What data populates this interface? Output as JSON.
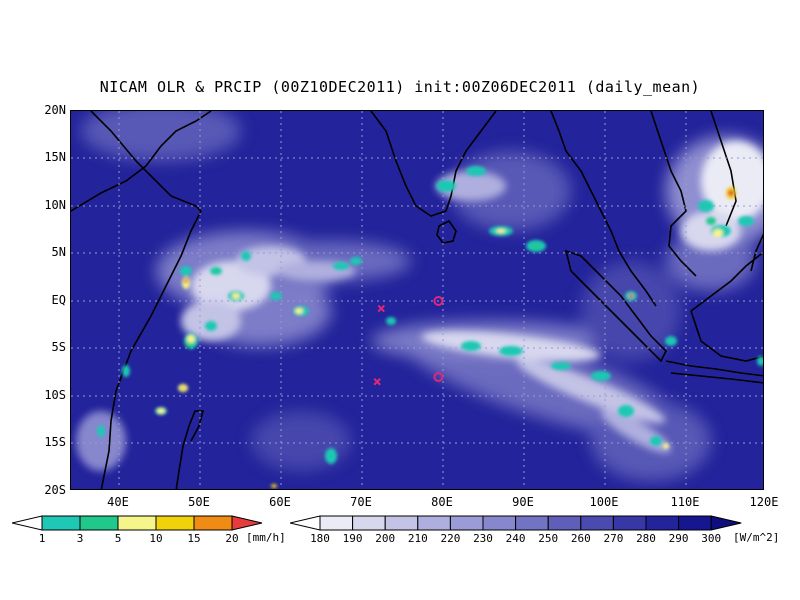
{
  "title": "NICAM OLR & PRCIP (00Z10DEC2011) init:00Z06DEC2011 (daily_mean)",
  "axes": {
    "lon_labels": [
      "40E",
      "50E",
      "60E",
      "70E",
      "80E",
      "90E",
      "100E",
      "110E",
      "120E"
    ],
    "lat_labels": [
      "20N",
      "15N",
      "10N",
      "5N",
      "EQ",
      "5S",
      "10S",
      "15S",
      "20S"
    ],
    "lon_range": [
      35,
      120
    ],
    "lat_range": [
      -20,
      20
    ]
  },
  "colorbars": {
    "precip": {
      "labels": [
        "1",
        "3",
        "5",
        "10",
        "15",
        "20"
      ],
      "unit": "[mm/h]",
      "colors": [
        "#ffffff",
        "#1ec8b4",
        "#20c88c",
        "#f5f58c",
        "#f0d20a",
        "#f08c14",
        "#e63c3c"
      ]
    },
    "olr": {
      "labels": [
        "180",
        "190",
        "200",
        "210",
        "220",
        "230",
        "240",
        "250",
        "260",
        "270",
        "280",
        "290",
        "300"
      ],
      "unit": "[W/m^2]",
      "colors": [
        "#ffffff",
        "#ebebf5",
        "#d7d7ee",
        "#c3c3e6",
        "#afafdf",
        "#9b9bd7",
        "#8787cd",
        "#7373c3",
        "#5f5fb9",
        "#4b4baf",
        "#3737a5",
        "#23239b",
        "#161691",
        "#0e0e7d"
      ]
    }
  },
  "markers": [
    {
      "type": "x",
      "lon": 73,
      "lat": -0.8,
      "color": "#e0287a"
    },
    {
      "type": "x",
      "lon": 72.5,
      "lat": -8.5,
      "color": "#e0287a"
    },
    {
      "type": "o",
      "lon": 80,
      "lat": 0,
      "color": "#e0287a"
    },
    {
      "type": "o",
      "lon": 80,
      "lat": -8,
      "color": "#e0287a"
    }
  ]
}
